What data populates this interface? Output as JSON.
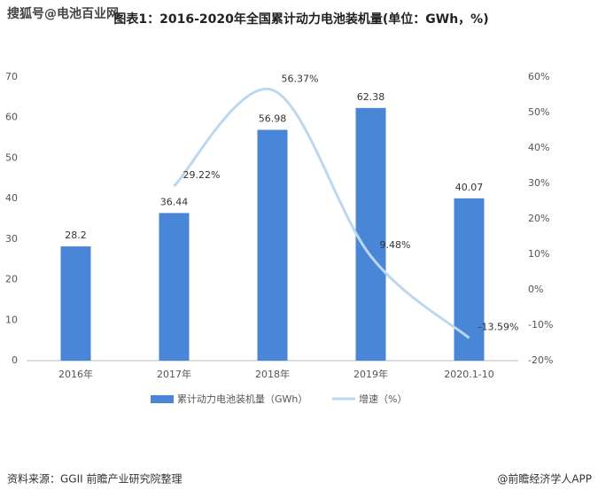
{
  "watermark": "搜狐号@电池百业网",
  "source": "资料来源：GGII 前瞻产业研究院整理",
  "credit": "@前瞻经济学人APP",
  "chart_data": {
    "type": "bar-line",
    "title": "图表1：2016-2020年全国累计动力电池装机量(单位：GWh，%)",
    "categories": [
      "2016年",
      "2017年",
      "2018年",
      "2019年",
      "2020.1-10"
    ],
    "series": [
      {
        "name": "累计动力电池装机量（GWh）",
        "type": "bar",
        "color": "#4a86d8",
        "values": [
          28.2,
          36.44,
          56.98,
          62.38,
          40.07
        ]
      },
      {
        "name": "增速（%）",
        "type": "line",
        "axis": "y2",
        "color": "#bcd7f0",
        "values": [
          null,
          29.22,
          56.37,
          9.48,
          -13.59
        ],
        "value_labels": [
          null,
          "29.22%",
          "56.37%",
          "9.48%",
          "-13.59%"
        ]
      }
    ],
    "ylim": [
      0,
      70
    ],
    "yticks": [
      0,
      10,
      20,
      30,
      40,
      50,
      60,
      70
    ],
    "y2lim": [
      -20,
      60
    ],
    "y2ticks": [
      {
        "value": -20,
        "label": "-20%"
      },
      {
        "value": -10,
        "label": "-10%"
      },
      {
        "value": 0,
        "label": "0%"
      },
      {
        "value": 10,
        "label": "10%"
      },
      {
        "value": 20,
        "label": "20%"
      },
      {
        "value": 30,
        "label": "30%"
      },
      {
        "value": 40,
        "label": "40%"
      },
      {
        "value": 50,
        "label": "50%"
      },
      {
        "value": 60,
        "label": "60%"
      }
    ],
    "legend": "bottom"
  }
}
